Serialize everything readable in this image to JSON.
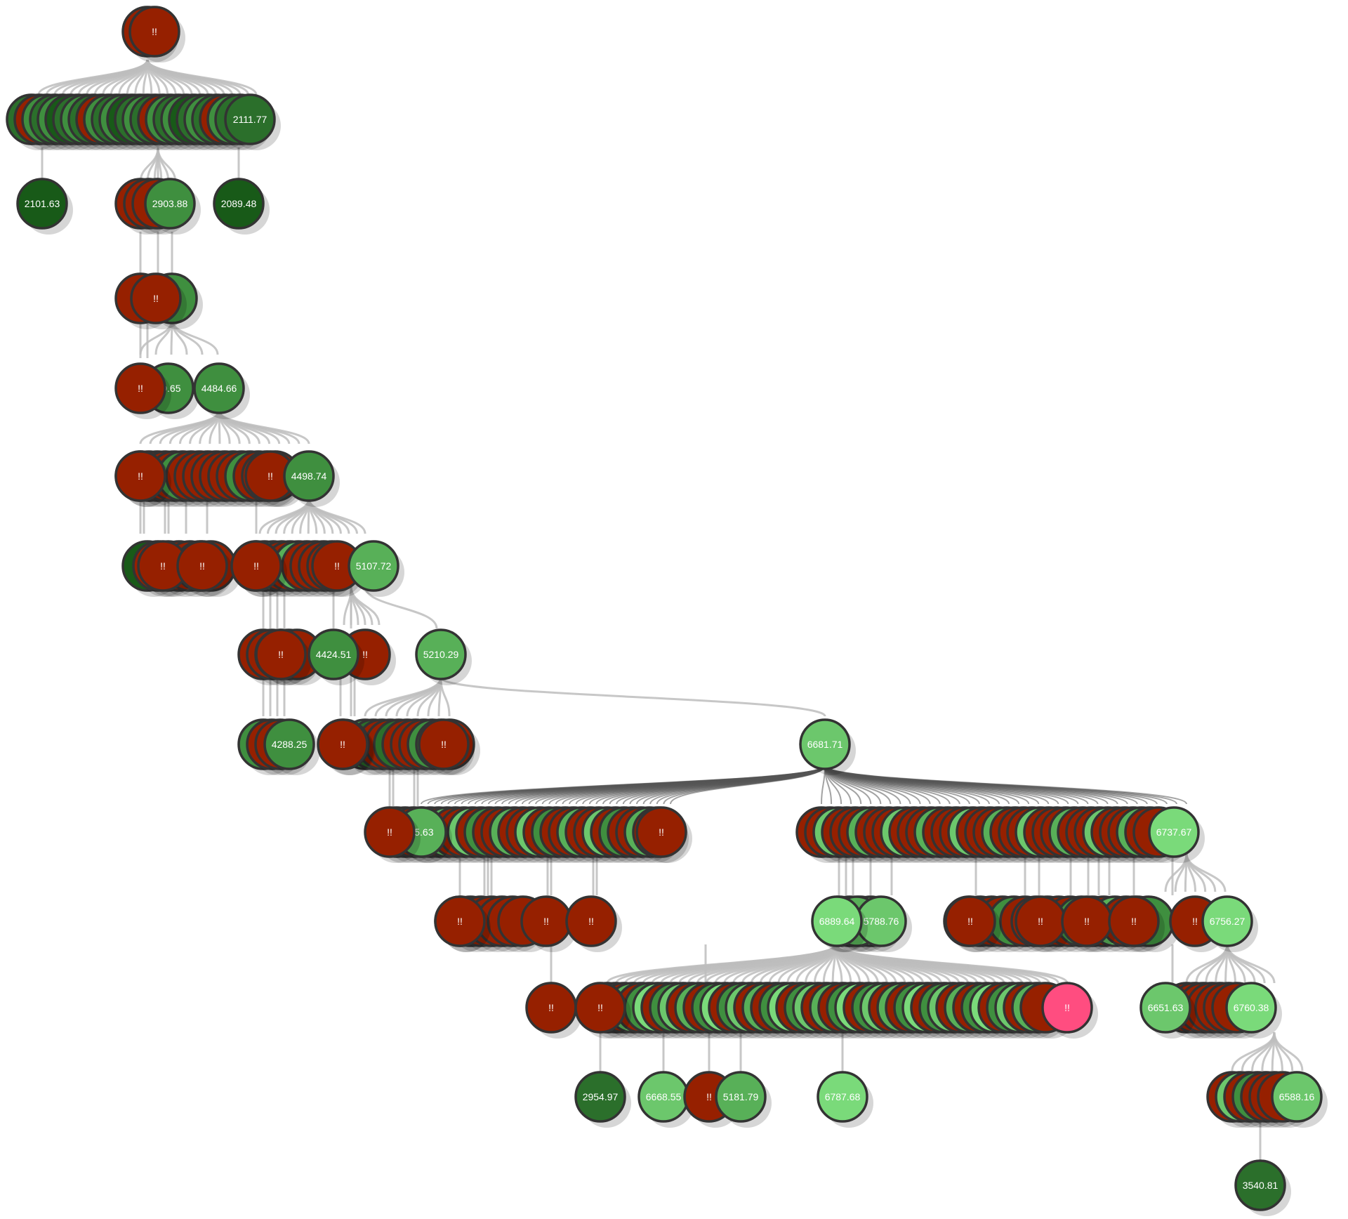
{
  "colors": {
    "alert": "#962000",
    "alert_pink": "#ff4d80",
    "green_darkest": "#185a18",
    "green_dark": "#2b6f2b",
    "green_mid": "#3f8f3f",
    "green_light": "#58b058",
    "green_lighter": "#6cc76c",
    "green_lightest": "#7ada7a",
    "edge": "#bdbdbd",
    "stroke": "#333333"
  },
  "labels": {
    "alert": "!!",
    "root": "!!",
    "l1_last": "2111.77",
    "l2_a": "2101.63",
    "l2_b": "2903.88",
    "l2_c": "2089.48",
    "l3_partial": "65",
    "l4_partial": "49.65",
    "l4_b": "4484.66",
    "l5_b": "4498.74",
    "l6_partial": "9",
    "l6_b": "5107.72",
    "l7_a": "4424.51",
    "l7_b": "5210.29",
    "l8_a": "4288.25",
    "l8_partial": "02",
    "l8_b": "6681.71",
    "l9_partial": "75.63",
    "l9_b": "6737.67",
    "l10_a": "6889.64",
    "l10_partial": "5",
    "l10_b": "5788.76",
    "l10_c": "6756.27",
    "l11_a": "6651.63",
    "l11_b": "6760.38",
    "l12_a": "2954.97",
    "l12_b": "6668.55",
    "l12_c": "5181.79",
    "l12_d": "6787.68",
    "l12_e": "6588.16",
    "l13_a": "3540.81"
  }
}
